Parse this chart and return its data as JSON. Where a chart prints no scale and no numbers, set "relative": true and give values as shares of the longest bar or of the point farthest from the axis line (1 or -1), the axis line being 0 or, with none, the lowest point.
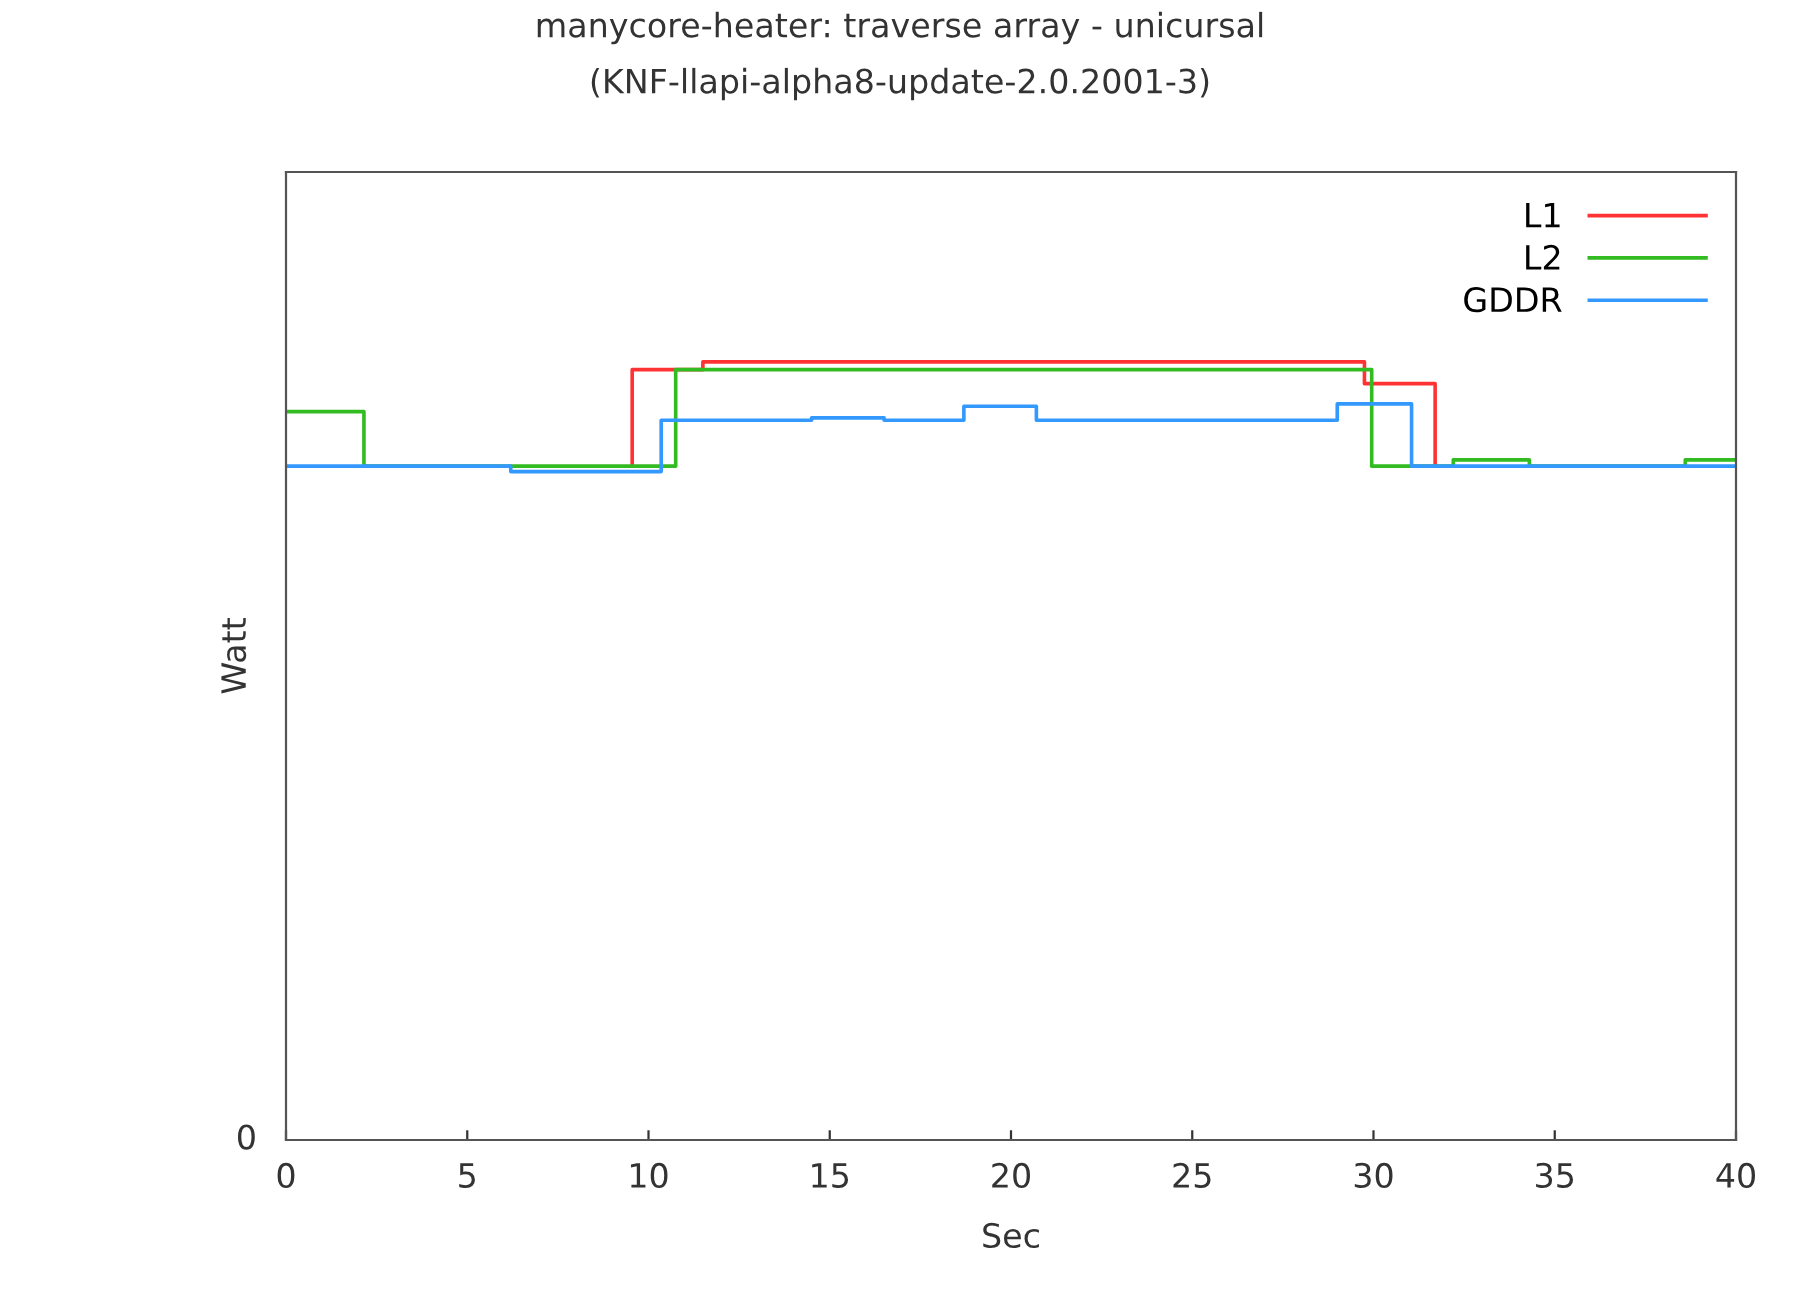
{
  "chart_data": {
    "type": "step",
    "title": "manycore-heater: traverse array - unicursal",
    "subtitle": "(KNF-llapi-alpha8-update-2.0.2001-3)",
    "xlabel": "Sec",
    "ylabel": "Watt",
    "relative": true,
    "xlim": [
      0,
      40
    ],
    "xticks": [
      0,
      5,
      10,
      15,
      20,
      25,
      30,
      35,
      40
    ],
    "legend": "top right",
    "grid": false,
    "annotations": [
      "0"
    ],
    "series": [
      {
        "name": "L1",
        "color": "#ff3333",
        "x": [
          9.55,
          9.55,
          11.5,
          29.75,
          31.7
        ],
        "values": [
          0.866,
          0.99,
          1.0,
          0.972,
          0.866
        ]
      },
      {
        "name": "L2",
        "color": "#33bb22",
        "x": [
          0,
          2.15,
          10.75,
          29.95,
          32.2,
          34.3,
          38.6,
          40
        ],
        "values": [
          0.936,
          0.866,
          0.99,
          0.866,
          0.874,
          0.866,
          0.874,
          0.874
        ]
      },
      {
        "name": "GDDR",
        "color": "#3399ff",
        "x": [
          0,
          6.2,
          10.35,
          14.5,
          16.5,
          18.7,
          20.7,
          29.0,
          31.05,
          40
        ],
        "values": [
          0.866,
          0.859,
          0.925,
          0.928,
          0.925,
          0.943,
          0.925,
          0.946,
          0.866,
          0.866
        ]
      }
    ]
  }
}
